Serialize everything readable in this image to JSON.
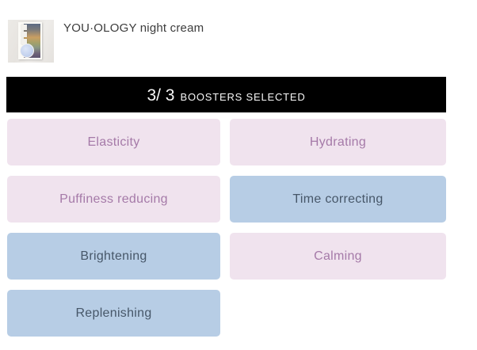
{
  "header": {
    "product_title": "YOU·OLOGY night cream"
  },
  "banner": {
    "count": "3/ 3",
    "label": "BOOSTERS SELECTED"
  },
  "boosters": [
    {
      "label": "Elasticity",
      "selected": false
    },
    {
      "label": "Hydrating",
      "selected": false
    },
    {
      "label": "Puffiness reducing",
      "selected": false
    },
    {
      "label": "Time correcting",
      "selected": true
    },
    {
      "label": "Brightening",
      "selected": true
    },
    {
      "label": "Calming",
      "selected": false
    },
    {
      "label": "Replenishing",
      "selected": true
    }
  ],
  "colors": {
    "banner_bg": "#000000",
    "banner_text": "#f7f7f7",
    "unselected_bg": "#f0e3ee",
    "unselected_text": "#a57aa8",
    "selected_bg": "#b7cde5",
    "selected_text": "#475769"
  }
}
